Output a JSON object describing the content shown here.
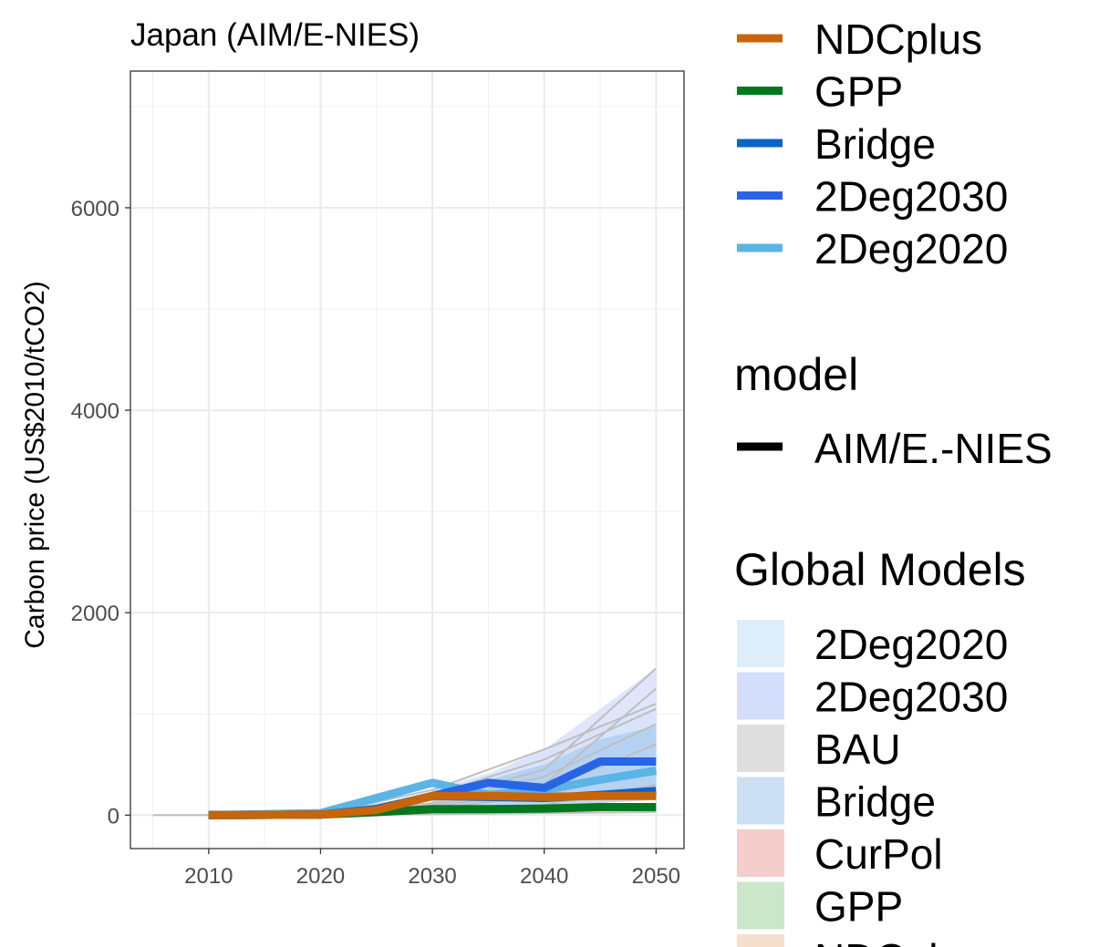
{
  "chart_data": {
    "type": "line",
    "title": "Japan (AIM/E-NIES)",
    "ylabel": "Carbon price (US$2010/tCO2)",
    "xlabel": "",
    "x_ticks": [
      2010,
      2020,
      2030,
      2040,
      2050
    ],
    "y_ticks": [
      0,
      2000,
      4000,
      6000
    ],
    "xlim": [
      2003,
      2052.5
    ],
    "ylim": [
      -330,
      7350
    ],
    "grid": true,
    "legend_position": "right",
    "series": [
      {
        "name": "NDCplus",
        "color": "#C8640A",
        "x": [
          2010,
          2020,
          2025,
          2030,
          2035,
          2040,
          2045,
          2050
        ],
        "y": [
          0,
          5,
          50,
          190,
          190,
          180,
          190,
          190
        ]
      },
      {
        "name": "GPP",
        "color": "#00781E",
        "x": [
          2010,
          2020,
          2025,
          2030,
          2035,
          2040,
          2045,
          2050
        ],
        "y": [
          0,
          5,
          30,
          60,
          60,
          65,
          80,
          80
        ]
      },
      {
        "name": "Bridge",
        "color": "#0A64C8",
        "x": [
          2010,
          2020,
          2025,
          2030,
          2035,
          2040,
          2045,
          2050
        ],
        "y": [
          0,
          5,
          60,
          190,
          180,
          170,
          200,
          240
        ]
      },
      {
        "name": "2Deg2030",
        "color": "#2864E6",
        "x": [
          2010,
          2020,
          2025,
          2030,
          2035,
          2040,
          2045,
          2050
        ],
        "y": [
          0,
          5,
          60,
          190,
          320,
          270,
          530,
          530
        ]
      },
      {
        "name": "2Deg2020",
        "color": "#5AB4E6",
        "x": [
          2010,
          2020,
          2025,
          2030,
          2035,
          2040,
          2045,
          2050
        ],
        "y": [
          0,
          20,
          170,
          320,
          200,
          250,
          350,
          440
        ]
      }
    ],
    "bands": [
      {
        "name": "2Deg2020",
        "x": [
          2030,
          2035,
          2040,
          2045,
          2050
        ],
        "lower": [
          20,
          50,
          100,
          150,
          200
        ],
        "upper": [
          260,
          420,
          650,
          900,
          1050
        ]
      },
      {
        "name": "2Deg2030",
        "x": [
          2030,
          2035,
          2040,
          2045,
          2050
        ],
        "lower": [
          100,
          120,
          150,
          200,
          280
        ],
        "upper": [
          250,
          400,
          650,
          1050,
          1450
        ]
      },
      {
        "name": "Bridge",
        "x": [
          2030,
          2035,
          2040,
          2045,
          2050
        ],
        "lower": [
          20,
          40,
          80,
          120,
          150
        ],
        "upper": [
          220,
          350,
          500,
          750,
          880
        ]
      }
    ],
    "global_model_lines": [
      {
        "x": [
          2005,
          2010,
          2020,
          2030,
          2040,
          2050
        ],
        "y": [
          0,
          0,
          0,
          10,
          20,
          30
        ]
      },
      {
        "x": [
          2020,
          2030,
          2040,
          2050
        ],
        "y": [
          10,
          250,
          650,
          1100
        ]
      },
      {
        "x": [
          2020,
          2030,
          2040,
          2050
        ],
        "y": [
          10,
          200,
          550,
          1050
        ]
      },
      {
        "x": [
          2020,
          2030,
          2040,
          2050
        ],
        "y": [
          10,
          150,
          450,
          1450
        ]
      },
      {
        "x": [
          2020,
          2030,
          2040,
          2050
        ],
        "y": [
          10,
          120,
          380,
          900
        ]
      },
      {
        "x": [
          2020,
          2030,
          2040,
          2050
        ],
        "y": [
          10,
          100,
          300,
          1250
        ]
      },
      {
        "x": [
          2020,
          2030,
          2040,
          2050
        ],
        "y": [
          10,
          80,
          250,
          700
        ]
      },
      {
        "x": [
          2020,
          2030,
          2040,
          2050
        ],
        "y": [
          5,
          60,
          200,
          450
        ]
      },
      {
        "x": [
          2020,
          2030,
          2040,
          2050
        ],
        "y": [
          5,
          30,
          100,
          300
        ]
      }
    ]
  },
  "legend": {
    "scenario_items": [
      {
        "label": "NDCplus",
        "color": "#C8640A"
      },
      {
        "label": "GPP",
        "color": "#00781E"
      },
      {
        "label": "Bridge",
        "color": "#0A64C8"
      },
      {
        "label": "2Deg2030",
        "color": "#2864E6"
      },
      {
        "label": "2Deg2020",
        "color": "#5AB4E6"
      }
    ],
    "model_title": "model",
    "model_items": [
      {
        "label": "AIM/E.-NIES",
        "color": "#000000"
      }
    ],
    "global_title": "Global Models",
    "global_items": [
      {
        "label": "2Deg2020",
        "color": "#DDEEFA"
      },
      {
        "label": "2Deg2030",
        "color": "#D4DEFA"
      },
      {
        "label": "BAU",
        "color": "#DEDEDE"
      },
      {
        "label": "Bridge",
        "color": "#CCE0F5"
      },
      {
        "label": "CurPol",
        "color": "#F4CDCC"
      },
      {
        "label": "GPP",
        "color": "#CCE6CC"
      },
      {
        "label": "NDCplus",
        "color": "#F5DFCC"
      }
    ]
  }
}
